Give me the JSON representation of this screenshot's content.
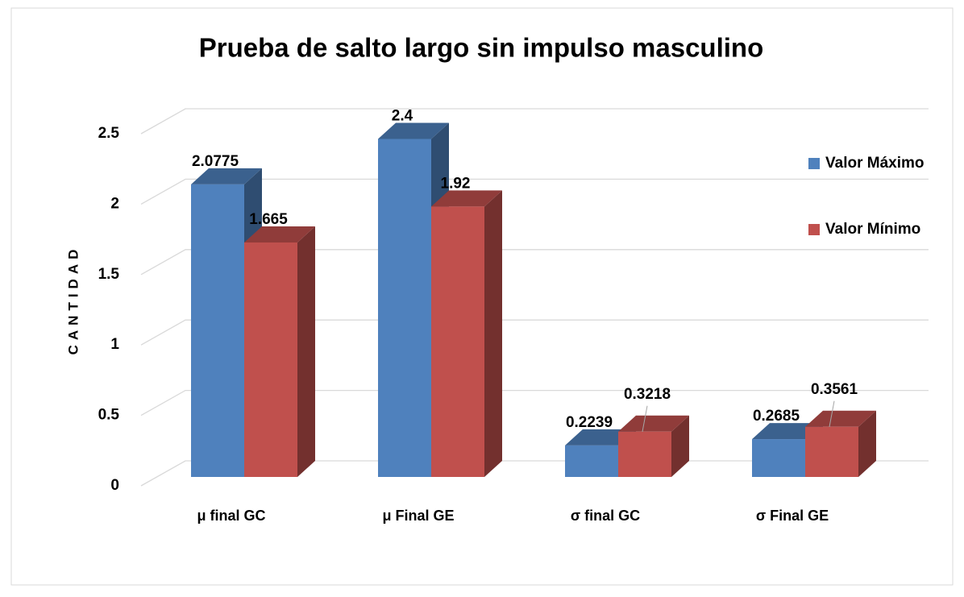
{
  "chart_data": {
    "type": "bar3d",
    "title": "Prueba  de salto largo sin impulso masculino",
    "y_label": "CANTIDAD",
    "categories": [
      "μ final GC",
      "μ Final GE",
      "σ final GC",
      "σ  Final GE"
    ],
    "series": [
      {
        "name": "Valor Máximo",
        "color": "#4f81bd",
        "values": [
          2.0775,
          2.4,
          0.2239,
          0.2685
        ]
      },
      {
        "name": "Valor Mínimo",
        "color": "#c0504d",
        "values": [
          1.665,
          1.92,
          0.3218,
          0.3561
        ]
      }
    ],
    "ylim": [
      0,
      2.5
    ],
    "yticks": [
      0,
      0.5,
      1,
      1.5,
      2,
      2.5
    ],
    "grid": true,
    "legend": "right"
  }
}
